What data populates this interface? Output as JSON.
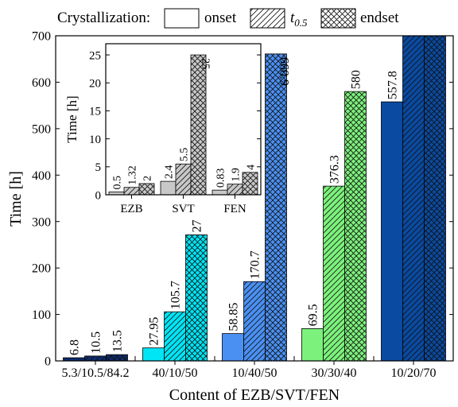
{
  "chart_data": [
    {
      "type": "bar",
      "categories": [
        "5.3/10.5/84.2",
        "40/10/50",
        "10/40/50",
        "30/30/40",
        "10/20/70"
      ],
      "category_colors": [
        "#0d2a6b",
        "#00e5f5",
        "#4a90f2",
        "#7cf27c",
        "#0a4aa0"
      ],
      "series": [
        {
          "name": "onset",
          "pattern": "none",
          "values": [
            6.8,
            27.95,
            58.85,
            69.5,
            557.8
          ]
        },
        {
          "name": "t0.5",
          "pattern": "diagonal",
          "values": [
            10.5,
            105.7,
            170.7,
            376.3,
            700
          ]
        },
        {
          "name": "endset",
          "pattern": "crosshatch",
          "values": [
            13.5,
            271.5,
            660.9,
            580,
            700
          ]
        }
      ],
      "data_labels": [
        [
          "6.8",
          "10.5",
          "13.5"
        ],
        [
          "27.95",
          "105.7",
          "271.5"
        ],
        [
          "58.85",
          "170.7",
          "660.9"
        ],
        [
          "69.5",
          "376.3",
          "580"
        ],
        [
          "557.8",
          "",
          ""
        ]
      ],
      "xlabel": "Content of EZB/SVT/FEN",
      "ylabel": "Time [h]",
      "ylim": [
        0,
        700
      ],
      "yticks": [
        0,
        100,
        200,
        300,
        400,
        500,
        600,
        700
      ],
      "legend": {
        "title": "Crystallization:",
        "entries": [
          {
            "label": "onset",
            "pattern": "none"
          },
          {
            "label": "t",
            "subscript": "0.5",
            "pattern": "diagonal"
          },
          {
            "label": "endset",
            "pattern": "crosshatch"
          }
        ],
        "placement": "top"
      },
      "grid": false
    },
    {
      "type": "bar",
      "bar_color": "#c8c8c8",
      "categories": [
        "EZB",
        "SVT",
        "FEN"
      ],
      "series": [
        {
          "name": "onset",
          "pattern": "none",
          "values": [
            0.5,
            2.4,
            0.83
          ]
        },
        {
          "name": "t0.5",
          "pattern": "diagonal",
          "values": [
            1.32,
            5.5,
            1.9
          ]
        },
        {
          "name": "endset",
          "pattern": "crosshatch",
          "values": [
            2,
            25,
            4
          ]
        }
      ],
      "data_labels": [
        [
          "0.5",
          "1.32",
          "2"
        ],
        [
          "2.4",
          "5.5",
          "25"
        ],
        [
          "0.83",
          "1.9",
          "4"
        ]
      ],
      "ylabel": "Time [h]",
      "ylim": [
        0,
        27
      ],
      "yticks": [
        0,
        5,
        10,
        15,
        20,
        25
      ],
      "placement": "inset-top-left",
      "grid": false
    }
  ]
}
